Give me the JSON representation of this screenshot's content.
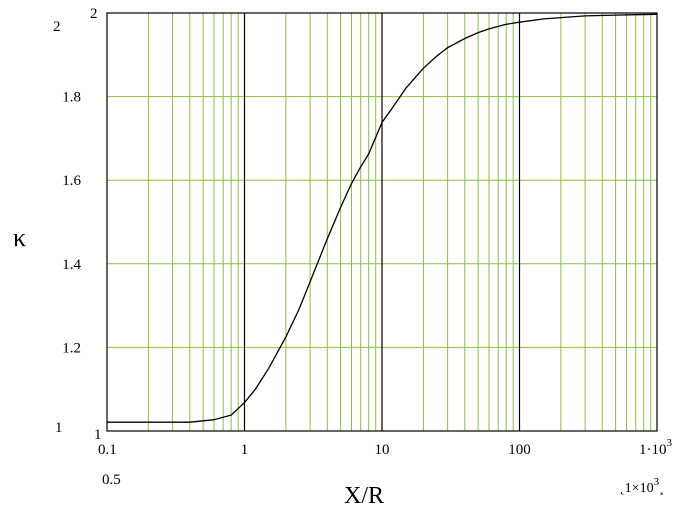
{
  "chart_data": {
    "type": "line",
    "xscale": "log",
    "xlim": [
      0.1,
      1000
    ],
    "ylim": [
      1,
      2
    ],
    "grid": true,
    "xlabel": "X/R",
    "ylabel": "κ",
    "x_ticks": [
      {
        "value": 0.1,
        "label": "0.1"
      },
      {
        "value": 1,
        "label": "1"
      },
      {
        "value": 10,
        "label": "10"
      },
      {
        "value": 100,
        "label": "100"
      },
      {
        "value": 1000,
        "label": "1·10"
      }
    ],
    "x_tick_last_exponent": "3",
    "y_ticks": [
      {
        "value": 1,
        "label": "1"
      },
      {
        "value": 1.2,
        "label": "1.2"
      },
      {
        "value": 1.4,
        "label": "1.4"
      },
      {
        "value": 1.6,
        "label": "1.6"
      },
      {
        "value": 1.8,
        "label": "1.8"
      },
      {
        "value": 2,
        "label": "2"
      }
    ],
    "range_min_label": "0.5",
    "range_max_label": "1×10",
    "range_max_exponent": "3",
    "ymax_outer_label": "2",
    "ymin_outer_label": "1",
    "series": [
      {
        "x": [
          0.1,
          0.2,
          0.4,
          0.6,
          0.8,
          1.0,
          1.2,
          1.5,
          2,
          2.5,
          3,
          4,
          5,
          6,
          7,
          8,
          10,
          12,
          15,
          20,
          25,
          30,
          40,
          50,
          60,
          70,
          80,
          100,
          150,
          200,
          300,
          500,
          700,
          1000
        ],
        "y": [
          1.021,
          1.021,
          1.021,
          1.027,
          1.038,
          1.068,
          1.1,
          1.15,
          1.225,
          1.292,
          1.357,
          1.46,
          1.535,
          1.592,
          1.632,
          1.663,
          1.738,
          1.775,
          1.821,
          1.868,
          1.897,
          1.917,
          1.939,
          1.953,
          1.962,
          1.968,
          1.973,
          1.978,
          1.986,
          1.989,
          1.993,
          1.995,
          1.996,
          1.997
        ]
      }
    ]
  },
  "colors": {
    "grid_minor": "#8cbf3f",
    "grid_major": "#000000",
    "curve": "#000000"
  }
}
